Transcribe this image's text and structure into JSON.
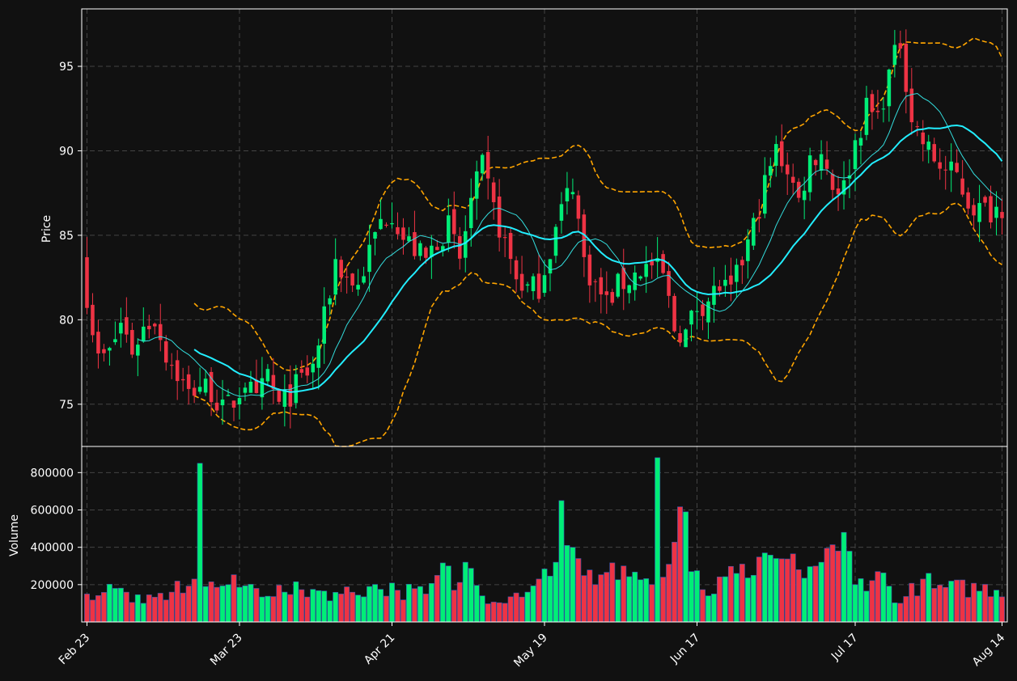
{
  "chart_data": {
    "type": "candlestick",
    "price_panel": {
      "ylabel": "Price",
      "ylim": [
        72.5,
        98.4
      ],
      "yticks": [
        75,
        80,
        85,
        90,
        95
      ],
      "grid": true
    },
    "volume_panel": {
      "ylabel": "Volume",
      "ylim": [
        0,
        940000
      ],
      "yticks": [
        200000,
        400000,
        600000,
        800000
      ],
      "grid": true
    },
    "xaxis": {
      "start_date": "2023-02-23",
      "tick_labels": [
        "Feb 23",
        "Mar 23",
        "Apr 21",
        "May 19",
        "Jun 17",
        "Jul 17",
        "Aug 14"
      ],
      "tick_dates": [
        "2023-02-23",
        "2023-03-23",
        "2023-04-21",
        "2023-05-19",
        "2023-06-17",
        "2023-07-17",
        "2023-08-14"
      ]
    },
    "colors": {
      "background": "#111111",
      "up": "#00ee77",
      "down": "#ee3344",
      "fast_ma": "#33dddd",
      "slow_ma": "#22eeff",
      "bands": "#ffa500",
      "grid": "#444444",
      "text": "#ffffff"
    },
    "anchors": [
      [
        0,
        81.5
      ],
      [
        2,
        77.6
      ],
      [
        4,
        78.0
      ],
      [
        6,
        79.8
      ],
      [
        8,
        78.2
      ],
      [
        10,
        79.5
      ],
      [
        12,
        80.1
      ],
      [
        14,
        78.0
      ],
      [
        16,
        76.8
      ],
      [
        18,
        75.6
      ],
      [
        20,
        76.2
      ],
      [
        22,
        75.8
      ],
      [
        24,
        74.6
      ],
      [
        26,
        75.2
      ],
      [
        28,
        76.4
      ],
      [
        30,
        75.0
      ],
      [
        32,
        76.8
      ],
      [
        34,
        74.8
      ],
      [
        36,
        75.6
      ],
      [
        38,
        76.5
      ],
      [
        40,
        77.2
      ],
      [
        42,
        80.0
      ],
      [
        44,
        83.5
      ],
      [
        46,
        82.5
      ],
      [
        48,
        82.0
      ],
      [
        50,
        84.0
      ],
      [
        52,
        85.8
      ],
      [
        54,
        86.5
      ],
      [
        56,
        84.8
      ],
      [
        58,
        84.2
      ],
      [
        60,
        83.5
      ],
      [
        62,
        84.8
      ],
      [
        64,
        85.5
      ],
      [
        66,
        83.5
      ],
      [
        68,
        87.0
      ],
      [
        70,
        89.0
      ],
      [
        72,
        86.5
      ],
      [
        74,
        84.5
      ],
      [
        76,
        82.5
      ],
      [
        78,
        81.8
      ],
      [
        80,
        82.0
      ],
      [
        82,
        84.2
      ],
      [
        84,
        86.5
      ],
      [
        86,
        88.2
      ],
      [
        88,
        83.5
      ],
      [
        90,
        82.0
      ],
      [
        92,
        81.0
      ],
      [
        94,
        82.0
      ],
      [
        96,
        82.4
      ],
      [
        98,
        83.0
      ],
      [
        100,
        83.2
      ],
      [
        102,
        82.6
      ],
      [
        104,
        79.5
      ],
      [
        106,
        79.2
      ],
      [
        108,
        80.8
      ],
      [
        110,
        81.2
      ],
      [
        112,
        82.0
      ],
      [
        114,
        81.5
      ],
      [
        116,
        83.5
      ],
      [
        118,
        85.5
      ],
      [
        120,
        88.0
      ],
      [
        122,
        90.0
      ],
      [
        124,
        89.0
      ],
      [
        126,
        87.0
      ],
      [
        128,
        89.5
      ],
      [
        130,
        90.0
      ],
      [
        132,
        88.0
      ],
      [
        134,
        87.8
      ],
      [
        136,
        90.5
      ],
      [
        138,
        92.5
      ],
      [
        140,
        92.0
      ],
      [
        142,
        94.5
      ],
      [
        144,
        96.5
      ],
      [
        146,
        92.0
      ],
      [
        148,
        90.5
      ],
      [
        150,
        89.5
      ],
      [
        152,
        88.8
      ],
      [
        154,
        88.5
      ],
      [
        156,
        87.0
      ],
      [
        158,
        86.5
      ],
      [
        160,
        86.5
      ],
      [
        162,
        86.8
      ]
    ],
    "volume_anchors": [
      [
        0,
        150000
      ],
      [
        5,
        180000
      ],
      [
        10,
        100000
      ],
      [
        15,
        160000
      ],
      [
        19,
        230000
      ],
      [
        20,
        850000
      ],
      [
        21,
        190000
      ],
      [
        25,
        200000
      ],
      [
        30,
        180000
      ],
      [
        35,
        160000
      ],
      [
        40,
        175000
      ],
      [
        45,
        150000
      ],
      [
        50,
        190000
      ],
      [
        55,
        170000
      ],
      [
        60,
        150000
      ],
      [
        64,
        300000
      ],
      [
        65,
        170000
      ],
      [
        67,
        320000
      ],
      [
        70,
        140000
      ],
      [
        75,
        135000
      ],
      [
        80,
        230000
      ],
      [
        83,
        320000
      ],
      [
        84,
        650000
      ],
      [
        85,
        410000
      ],
      [
        86,
        400000
      ],
      [
        87,
        340000
      ],
      [
        90,
        200000
      ],
      [
        95,
        300000
      ],
      [
        100,
        200000
      ],
      [
        101,
        880000
      ],
      [
        102,
        240000
      ],
      [
        106,
        590000
      ],
      [
        107,
        270000
      ],
      [
        110,
        140000
      ],
      [
        115,
        260000
      ],
      [
        116,
        310000
      ],
      [
        118,
        250000
      ],
      [
        122,
        340000
      ],
      [
        126,
        280000
      ],
      [
        130,
        320000
      ],
      [
        133,
        380000
      ],
      [
        134,
        480000
      ],
      [
        136,
        200000
      ],
      [
        140,
        270000
      ],
      [
        144,
        100000
      ],
      [
        148,
        230000
      ],
      [
        150,
        180000
      ]
    ],
    "days": 163
  }
}
